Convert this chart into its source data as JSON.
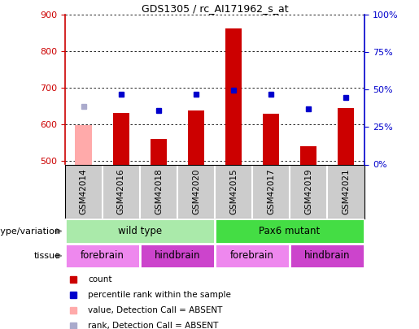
{
  "title": "GDS1305 / rc_AI171962_s_at",
  "samples": [
    "GSM42014",
    "GSM42016",
    "GSM42018",
    "GSM42020",
    "GSM42015",
    "GSM42017",
    "GSM42019",
    "GSM42021"
  ],
  "count_values": [
    597,
    632,
    560,
    637,
    863,
    630,
    540,
    645
  ],
  "count_absent": [
    true,
    false,
    false,
    false,
    false,
    false,
    false,
    false
  ],
  "percentile_left_y": [
    648,
    683,
    638,
    683,
    693,
    683,
    643,
    673
  ],
  "percentile_absent": [
    true,
    false,
    false,
    false,
    false,
    false,
    false,
    false
  ],
  "ylim_left": [
    490,
    900
  ],
  "ylim_right": [
    0,
    100
  ],
  "yticks_left": [
    500,
    600,
    700,
    800,
    900
  ],
  "yticks_right": [
    0,
    25,
    50,
    75,
    100
  ],
  "bar_color": "#cc0000",
  "bar_absent_color": "#ffaaaa",
  "dot_color": "#0000cc",
  "dot_absent_color": "#aaaacc",
  "axis_color_left": "#cc0000",
  "axis_color_right": "#0000cc",
  "genotype_groups": [
    {
      "label": "wild type",
      "start": 0,
      "end": 4,
      "color": "#aaeaaa"
    },
    {
      "label": "Pax6 mutant",
      "start": 4,
      "end": 8,
      "color": "#44dd44"
    }
  ],
  "tissue_groups": [
    {
      "label": "forebrain",
      "start": 0,
      "end": 2,
      "color": "#ee88ee"
    },
    {
      "label": "hindbrain",
      "start": 2,
      "end": 4,
      "color": "#cc44cc"
    },
    {
      "label": "forebrain",
      "start": 4,
      "end": 6,
      "color": "#ee88ee"
    },
    {
      "label": "hindbrain",
      "start": 6,
      "end": 8,
      "color": "#cc44cc"
    }
  ],
  "legend_items": [
    {
      "label": "count",
      "color": "#cc0000"
    },
    {
      "label": "percentile rank within the sample",
      "color": "#0000cc"
    },
    {
      "label": "value, Detection Call = ABSENT",
      "color": "#ffaaaa"
    },
    {
      "label": "rank, Detection Call = ABSENT",
      "color": "#aaaacc"
    }
  ],
  "sample_label_bg": "#cccccc",
  "left_label_genotype": "genotype/variation",
  "left_label_tissue": "tissue"
}
